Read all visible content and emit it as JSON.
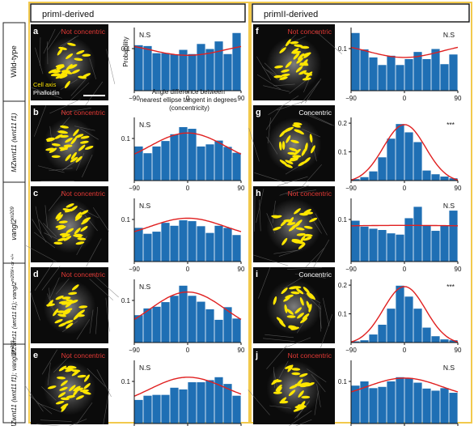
{
  "columns": [
    "primI-derived",
    "primII-derived"
  ],
  "rows": [
    {
      "label": "Wild-type",
      "label_sup": ""
    },
    {
      "label": "MZwnt11 (wnt11 f1)",
      "label_sup": ""
    },
    {
      "label": "vangl2",
      "label_sup": "m209"
    },
    {
      "label": "MZwnt11 (wnt11 f1); vangl2",
      "label_sup": "m209/+ or +/+"
    },
    {
      "label": "MZwnt11 (wnt11 f1); vangl2",
      "label_sup": "m209"
    }
  ],
  "legend": {
    "cell_axis": "Cell axis",
    "phalloidin": "Phalloidin",
    "cell_axis_color": "#ffe600"
  },
  "colors": {
    "bar": "#1f6fb4",
    "fit": "#e02020",
    "not_concentric": "#e53935",
    "concentric": "#ffffff",
    "frame": "#f2c94c"
  },
  "axis_text": {
    "ylabel": "Probability",
    "xlabel": "Angle difference between nearest ellipse tangent in degrees (concentricity)"
  },
  "chart_data": [
    {
      "panel": "a",
      "type": "bar",
      "status": "Not concentric",
      "sig": "N.S",
      "ylim": [
        0,
        0.15
      ],
      "yticks": [
        0.1
      ],
      "xticks": [
        -90,
        0,
        90
      ],
      "show_ylabel": true,
      "show_xlabel": true,
      "values": [
        0.108,
        0.106,
        0.089,
        0.089,
        0.086,
        0.097,
        0.087,
        0.111,
        0.099,
        0.117,
        0.087,
        0.137
      ],
      "fit": [
        0.105,
        0.084,
        0.105
      ]
    },
    {
      "panel": "b",
      "type": "bar",
      "status": "Not concentric",
      "sig": "N.S",
      "ylim": [
        0,
        0.15
      ],
      "yticks": [
        0.1
      ],
      "xticks": [
        -90,
        0,
        90
      ],
      "show_ylabel": false,
      "show_xlabel": false,
      "values": [
        0.081,
        0.065,
        0.081,
        0.094,
        0.11,
        0.127,
        0.123,
        0.081,
        0.086,
        0.095,
        0.08,
        0.066
      ],
      "fit": [
        0.063,
        0.113,
        0.063
      ]
    },
    {
      "panel": "c",
      "type": "bar",
      "status": "Not concentric",
      "sig": "N.S",
      "ylim": [
        0,
        0.15
      ],
      "yticks": [
        0.1
      ],
      "xticks": [
        -90,
        0,
        90
      ],
      "show_ylabel": false,
      "show_xlabel": false,
      "values": [
        0.08,
        0.066,
        0.071,
        0.092,
        0.085,
        0.098,
        0.096,
        0.084,
        0.068,
        0.085,
        0.08,
        0.063
      ],
      "fit": [
        0.071,
        0.103,
        0.071
      ]
    },
    {
      "panel": "d",
      "type": "bar",
      "status": "Not concentric",
      "sig": "N.S",
      "ylim": [
        0,
        0.15
      ],
      "yticks": [
        0.1
      ],
      "xticks": [
        -90,
        0,
        90
      ],
      "show_ylabel": false,
      "show_xlabel": false,
      "values": [
        0.065,
        0.081,
        0.085,
        0.096,
        0.111,
        0.135,
        0.111,
        0.097,
        0.079,
        0.054,
        0.084,
        0.057
      ],
      "fit": [
        0.055,
        0.12,
        0.055
      ]
    },
    {
      "panel": "e",
      "type": "bar",
      "status": "Not concentric",
      "sig": "N.S",
      "ylim": [
        0,
        0.15
      ],
      "yticks": [
        0.1
      ],
      "xticks": [
        -90,
        0,
        90
      ],
      "show_ylabel": false,
      "show_xlabel": false,
      "values": [
        0.056,
        0.066,
        0.068,
        0.068,
        0.085,
        0.081,
        0.098,
        0.098,
        0.103,
        0.11,
        0.094,
        0.066
      ],
      "fit": [
        0.065,
        0.11,
        0.07
      ]
    },
    {
      "panel": "f",
      "type": "bar",
      "status": "Not concentric",
      "sig": "N.S",
      "ylim": [
        0,
        0.15
      ],
      "yticks": [
        0.1
      ],
      "xticks": [
        -90,
        0,
        90
      ],
      "show_ylabel": false,
      "show_xlabel": false,
      "values": [
        0.137,
        0.098,
        0.079,
        0.061,
        0.083,
        0.061,
        0.075,
        0.092,
        0.075,
        0.099,
        0.063,
        0.086
      ],
      "fit": [
        0.103,
        0.079,
        0.103
      ]
    },
    {
      "panel": "g",
      "type": "bar",
      "status": "Concentric",
      "sig": "***",
      "ylim": [
        0,
        0.22
      ],
      "yticks": [
        0.1,
        0.2
      ],
      "xticks": [
        -90,
        0,
        90
      ],
      "show_ylabel": false,
      "show_xlabel": false,
      "values": [
        0.005,
        0.012,
        0.032,
        0.081,
        0.146,
        0.197,
        0.168,
        0.134,
        0.035,
        0.022,
        0.014,
        0.008
      ],
      "fit": [
        0.002,
        0.195,
        0.002
      ]
    },
    {
      "panel": "h",
      "type": "bar",
      "status": "Not concentric",
      "sig": "N.S",
      "ylim": [
        0,
        0.15
      ],
      "yticks": [
        0.1
      ],
      "xticks": [
        -90,
        0,
        90
      ],
      "show_ylabel": false,
      "show_xlabel": false,
      "values": [
        0.097,
        0.083,
        0.078,
        0.075,
        0.067,
        0.064,
        0.103,
        0.13,
        0.085,
        0.073,
        0.085,
        0.121
      ],
      "fit": [
        0.085,
        0.086,
        0.085
      ]
    },
    {
      "panel": "i",
      "type": "bar",
      "status": "Concentric",
      "sig": "***",
      "ylim": [
        0,
        0.22
      ],
      "yticks": [
        0.1,
        0.2
      ],
      "xticks": [
        -90,
        0,
        90
      ],
      "show_ylabel": false,
      "show_xlabel": false,
      "values": [
        0.004,
        0.008,
        0.028,
        0.062,
        0.118,
        0.198,
        0.16,
        0.118,
        0.052,
        0.022,
        0.011,
        0.008
      ],
      "fit": [
        0.002,
        0.195,
        0.002
      ]
    },
    {
      "panel": "j",
      "type": "bar",
      "status": "Not concentric",
      "sig": "N.S",
      "ylim": [
        0,
        0.15
      ],
      "yticks": [
        0.1
      ],
      "xticks": [
        -90,
        0,
        90
      ],
      "show_ylabel": false,
      "show_xlabel": true,
      "values": [
        0.09,
        0.1,
        0.084,
        0.087,
        0.1,
        0.11,
        0.108,
        0.097,
        0.083,
        0.078,
        0.084,
        0.073
      ],
      "fit": [
        0.075,
        0.108,
        0.075
      ]
    }
  ]
}
